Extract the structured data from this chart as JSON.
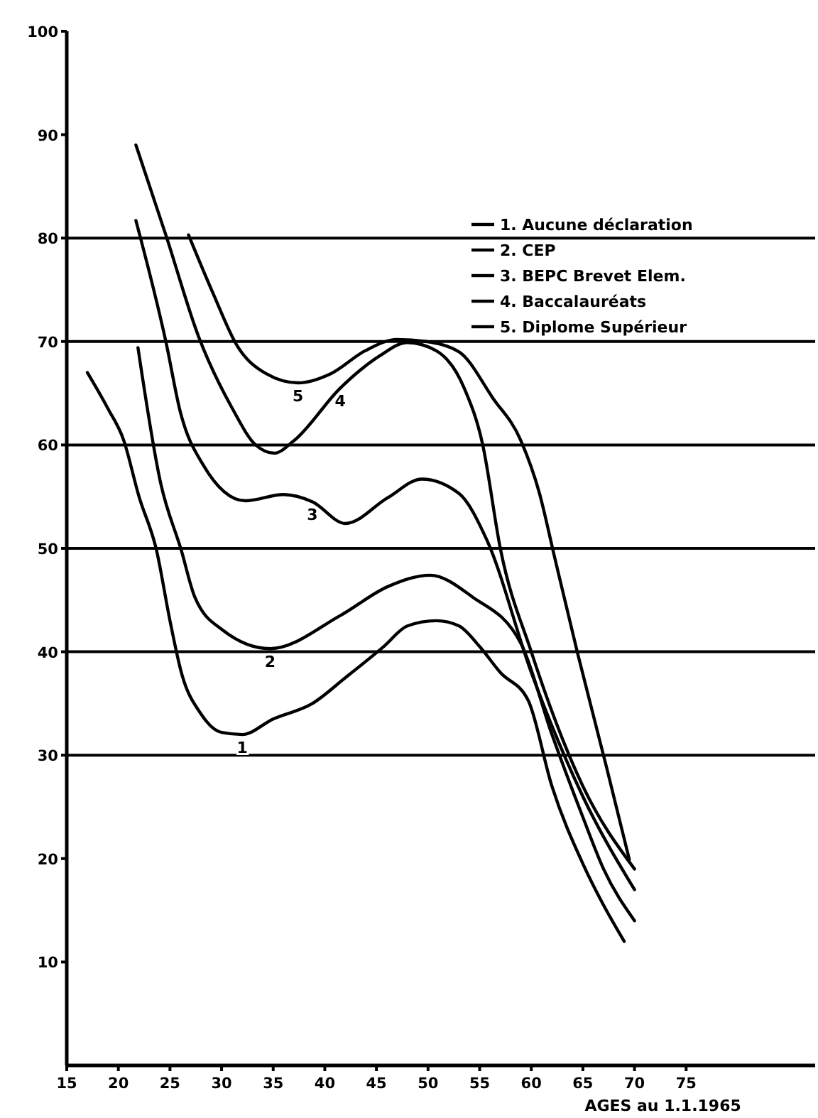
{
  "chart_data": {
    "type": "line",
    "xlabel": "AGES au 1.1.1965",
    "xlim": [
      15,
      87.5
    ],
    "ylim": [
      0,
      100
    ],
    "xticks": [
      15,
      20,
      25,
      30,
      35,
      40,
      45,
      50,
      55,
      60,
      65,
      70,
      75
    ],
    "yticks": [
      10,
      20,
      30,
      40,
      50,
      60,
      70,
      80,
      90,
      100
    ],
    "grid": false,
    "legend": "top right",
    "marker": "none",
    "line_style": "solid",
    "ref_lines": [
      {
        "axis": "y",
        "value": 30
      },
      {
        "axis": "y",
        "value": 40
      },
      {
        "axis": "y",
        "value": 50
      },
      {
        "axis": "y",
        "value": 60
      },
      {
        "axis": "y",
        "value": 70
      },
      {
        "axis": "y",
        "value": 80
      }
    ],
    "series": [
      {
        "name": "1. Aucune déclaration",
        "color": "#000000",
        "x": [
          17,
          19,
          20.5,
          22,
          23.7,
          25,
          26.1,
          28,
          30,
          32,
          35,
          38.8,
          42,
          45.7,
          48,
          50.8,
          53,
          55,
          57,
          59.7,
          62,
          65,
          67,
          69
        ],
        "values": [
          67,
          63.5,
          60.5,
          55,
          49.8,
          43,
          38,
          34,
          32.2,
          32,
          33.5,
          35,
          37.5,
          40.5,
          42.5,
          43,
          42.5,
          40.5,
          38,
          35.3,
          27,
          19.5,
          15.5,
          12
        ]
      },
      {
        "name": "2. CEP",
        "color": "#000000",
        "x": [
          21.9,
          24.1,
          26.1,
          27.4,
          30.1,
          34.7,
          41.5,
          46.1,
          50.2,
          54.3,
          59,
          62,
          65,
          67,
          70
        ],
        "values": [
          69.4,
          56.3,
          49.8,
          45.3,
          42.1,
          40.3,
          43.5,
          46.3,
          47.4,
          45.3,
          40.8,
          32,
          24,
          19,
          14
        ]
      },
      {
        "name": "3. BEPC Brevet Elem.",
        "color": "#000000",
        "x": [
          21.7,
          24.6,
          26,
          28.2,
          32.3,
          36,
          38.8,
          42,
          46.1,
          49.4,
          53,
          55.7,
          60,
          65,
          70
        ],
        "values": [
          81.7,
          70,
          63.2,
          58.1,
          54.6,
          55.2,
          54.5,
          52.4,
          54.9,
          56.7,
          55.3,
          50.8,
          38,
          26,
          17
        ]
      },
      {
        "name": "4. Baccalauréats",
        "color": "#000000",
        "x": [
          21.7,
          24.6,
          27.8,
          31,
          33.3,
          35.1,
          37,
          41.5,
          45.3,
          48,
          50.8,
          53.5,
          55.3,
          57,
          60,
          65,
          70
        ],
        "values": [
          89,
          80.3,
          70.4,
          63.6,
          60,
          59.2,
          60.4,
          65.5,
          68.6,
          69.9,
          69.1,
          65.5,
          60,
          50,
          40,
          27,
          19
        ]
      },
      {
        "name": "5. Diplome Supérieur",
        "color": "#000000",
        "x": [
          26.8,
          29.2,
          31.5,
          34.3,
          37.4,
          40.6,
          43.9,
          47,
          49.8,
          53,
          56.3,
          59,
          60.8,
          62.2,
          64.5,
          67.3,
          69.5
        ],
        "values": [
          80.3,
          74.6,
          69.6,
          66.9,
          66,
          66.9,
          69.1,
          70.2,
          70,
          69,
          64.5,
          60.4,
          55.3,
          49.4,
          39.8,
          28.8,
          19.9
        ]
      }
    ],
    "annotations": [
      {
        "text": "1",
        "x": 32,
        "y": 32
      },
      {
        "text": "2",
        "x": 34.7,
        "y": 40.3
      },
      {
        "text": "3",
        "x": 38.8,
        "y": 54.5
      },
      {
        "text": "4",
        "x": 41.5,
        "y": 65.5
      },
      {
        "text": "5",
        "x": 37.4,
        "y": 66
      }
    ]
  }
}
